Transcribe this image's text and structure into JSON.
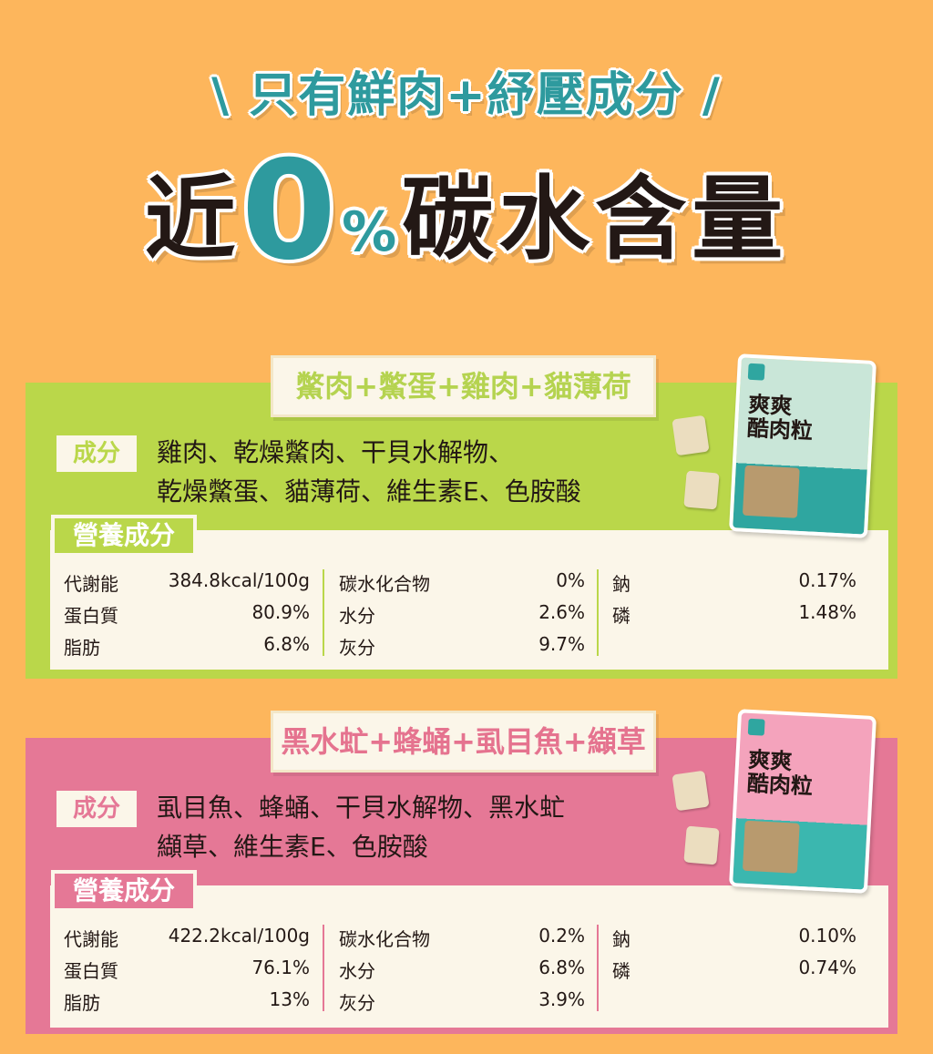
{
  "header": {
    "tagline": "\\ 只有鮮肉+紓壓成分 /",
    "line_prefix": "近",
    "zero": "0",
    "percent": "%",
    "line_suffix": "碳水含量"
  },
  "colors": {
    "background": "#FDB65C",
    "teal": "#2E9A9E",
    "green": "#BAD74A",
    "pink": "#E57896",
    "cream": "#FBF6E9"
  },
  "products": [
    {
      "theme": "green",
      "title": "鱉肉+鱉蛋+雞肉+貓薄荷",
      "ingredients_label": "成分",
      "ingredients": [
        "雞肉、乾燥鱉肉、干貝水解物、",
        "乾燥鱉蛋、貓薄荷、維生素E、色胺酸"
      ],
      "nutrition_label": "營養成分",
      "package_name": "爽爽\n酷肉粒",
      "nutrition": [
        [
          {
            "label": "代謝能",
            "value": "384.8kcal/100g"
          },
          {
            "label": "碳水化合物",
            "value": "0%"
          },
          {
            "label": "鈉",
            "value": "0.17%"
          }
        ],
        [
          {
            "label": "蛋白質",
            "value": "80.9%"
          },
          {
            "label": "水分",
            "value": "2.6%"
          },
          {
            "label": "磷",
            "value": "1.48%"
          }
        ],
        [
          {
            "label": "脂肪",
            "value": "6.8%"
          },
          {
            "label": "灰分",
            "value": "9.7%"
          }
        ]
      ]
    },
    {
      "theme": "pink",
      "title": "黑水虻+蜂蛹+虱目魚+纈草",
      "ingredients_label": "成分",
      "ingredients": [
        "虱目魚、蜂蛹、干貝水解物、黑水虻",
        "纈草、維生素E、色胺酸"
      ],
      "nutrition_label": "營養成分",
      "package_name": "爽爽\n酷肉粒",
      "nutrition": [
        [
          {
            "label": "代謝能",
            "value": "422.2kcal/100g"
          },
          {
            "label": "碳水化合物",
            "value": "0.2%"
          },
          {
            "label": "鈉",
            "value": "0.10%"
          }
        ],
        [
          {
            "label": "蛋白質",
            "value": "76.1%"
          },
          {
            "label": "水分",
            "value": "6.8%"
          },
          {
            "label": "磷",
            "value": "0.74%"
          }
        ],
        [
          {
            "label": "脂肪",
            "value": "13%"
          },
          {
            "label": "灰分",
            "value": "3.9%"
          }
        ]
      ]
    }
  ]
}
